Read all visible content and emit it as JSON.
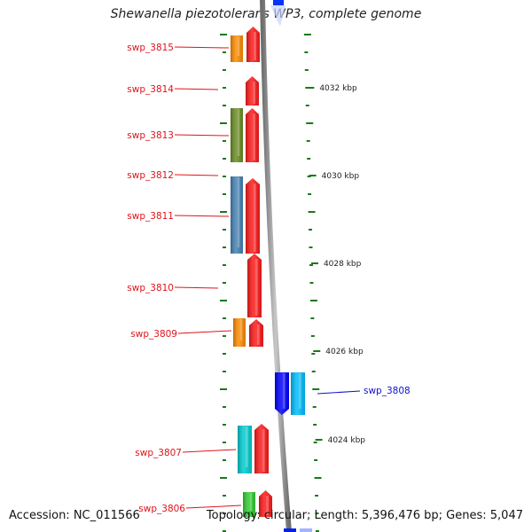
{
  "title": "Shewanella piezotolerans WP3, complete genome",
  "accession": "Accession: NC_011566",
  "topology": "Topology: circular; Length: 5,396,476 bp; Genes: 5,047",
  "colors": {
    "minus_label": "#e0131a",
    "plus_label": "#1010d0",
    "backbone": "#8c8c8c",
    "tick": "#1a7a1a"
  },
  "kbp_labels": [
    "4032 kbp",
    "4030 kbp",
    "4028 kbp",
    "4026 kbp",
    "4024 kbp"
  ],
  "genes": [
    {
      "label": "swp_3815",
      "strand": "minus",
      "orf_color": "#ff8c00",
      "cog_color": "#ff1a1a"
    },
    {
      "label": "swp_3814",
      "strand": "minus",
      "orf_color": null,
      "cog_color": "#ff1a1a"
    },
    {
      "label": "swp_3813",
      "strand": "minus",
      "orf_color": "#6b8e23",
      "cog_color": "#ff1a1a"
    },
    {
      "label": "swp_3812",
      "strand": "minus",
      "orf_color": null,
      "cog_color": null
    },
    {
      "label": "swp_3811",
      "strand": "minus",
      "orf_color": "#4682b4",
      "cog_color": "#ff1a1a"
    },
    {
      "label": "swp_3810",
      "strand": "minus",
      "orf_color": null,
      "cog_color": "#ff1a1a"
    },
    {
      "label": "swp_3809",
      "strand": "minus",
      "orf_color": "#ff8c00",
      "cog_color": "#ff1a1a"
    },
    {
      "label": "swp_3808",
      "strand": "plus",
      "orf_color": "#00bfff",
      "cog_color": "#0000ff"
    },
    {
      "label": "swp_3807",
      "strand": "minus",
      "orf_color": "#00ced1",
      "cog_color": "#ff1a1a"
    },
    {
      "label": "swp_3806",
      "strand": "minus",
      "orf_color": "#32cd32",
      "cog_color": "#ff1a1a"
    }
  ]
}
